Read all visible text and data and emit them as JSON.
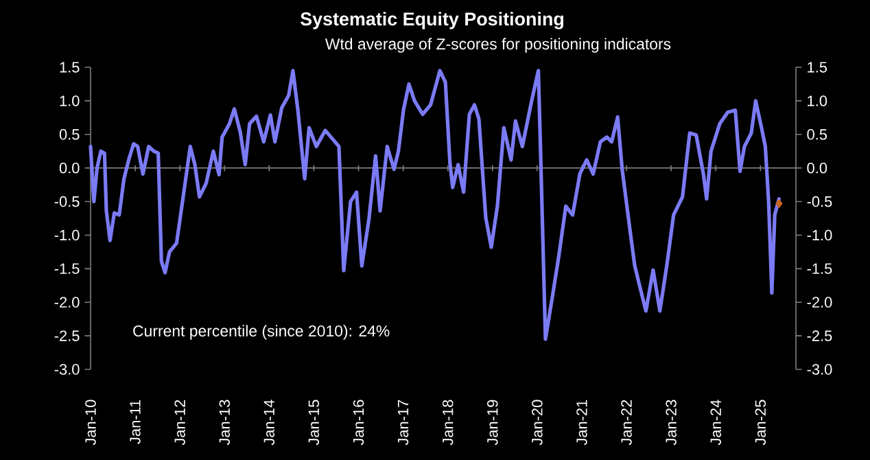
{
  "chart_data": {
    "type": "line",
    "title": "Systematic Equity Positioning",
    "subtitle": "Wtd average of Z-scores for positioning indicators",
    "annotations": [
      "Current percentile (since 2010): 24%"
    ],
    "xlim": [
      "2010-01-01",
      "2025-10-18"
    ],
    "xticks": [
      {
        "value": "2010-01-01",
        "label": "Jan-10"
      },
      {
        "value": "2011-01-01",
        "label": "Jan-11"
      },
      {
        "value": "2012-01-01",
        "label": "Jan-12"
      },
      {
        "value": "2013-01-01",
        "label": "Jan-13"
      },
      {
        "value": "2014-01-01",
        "label": "Jan-14"
      },
      {
        "value": "2015-01-01",
        "label": "Jan-15"
      },
      {
        "value": "2016-01-01",
        "label": "Jan-16"
      },
      {
        "value": "2017-01-01",
        "label": "Jan-17"
      },
      {
        "value": "2018-01-01",
        "label": "Jan-18"
      },
      {
        "value": "2019-01-01",
        "label": "Jan-19"
      },
      {
        "value": "2020-01-01",
        "label": "Jan-20"
      },
      {
        "value": "2021-01-01",
        "label": "Jan-21"
      },
      {
        "value": "2022-01-01",
        "label": "Jan-22"
      },
      {
        "value": "2023-01-01",
        "label": "Jan-23"
      },
      {
        "value": "2024-01-01",
        "label": "Jan-24"
      },
      {
        "value": "2025-01-01",
        "label": "Jan-25"
      }
    ],
    "ylim": [
      -3,
      1.5
    ],
    "yticks": [
      1.5,
      {
        "value": 1,
        "label": "1.0"
      },
      0.5,
      {
        "value": 0,
        "label": "0.0"
      },
      -0.5,
      {
        "value": -1,
        "label": "-1.0"
      },
      -1.5,
      {
        "value": -2,
        "label": "-2.0"
      },
      -2.5,
      {
        "value": -3,
        "label": "-3.0"
      }
    ],
    "y2lim": [
      -3,
      1.5
    ],
    "y2ticks": [
      1.5,
      {
        "value": 1,
        "label": "1.0"
      },
      0.5,
      {
        "value": 0,
        "label": "0.0"
      },
      -0.5,
      {
        "value": -1,
        "label": "-1.0"
      },
      -1.5,
      {
        "value": -2,
        "label": "-2.0"
      },
      -2.5,
      {
        "value": -3,
        "label": "-3.0"
      }
    ],
    "series": [
      {
        "color": "#7b7bf5",
        "x": [
          "2010-01-01",
          "2010-01-28",
          "2010-02-23",
          "2010-03-26",
          "2010-04-25",
          "2010-05-10",
          "2010-06-09",
          "2010-07-14",
          "2010-08-23",
          "2010-10-01",
          "2010-11-13",
          "2010-12-19",
          "2011-01-21",
          "2011-03-05",
          "2011-04-21",
          "2011-06-02",
          "2011-07-08",
          "2011-08-03",
          "2011-09-02",
          "2011-10-08",
          "2011-12-05",
          "2012-01-28",
          "2012-03-26",
          "2012-05-03",
          "2012-06-09",
          "2012-08-03",
          "2012-10-01",
          "2012-11-17",
          "2012-12-12",
          "2013-02-10",
          "2013-03-22",
          "2013-05-10",
          "2013-06-19",
          "2013-07-25",
          "2013-09-19",
          "2013-11-17",
          "2014-01-11",
          "2014-02-17",
          "2014-04-14",
          "2014-06-09",
          "2014-07-14",
          "2014-08-23",
          "2014-10-18",
          "2014-11-23",
          "2015-01-21",
          "2015-04-04",
          "2015-07-25",
          "2015-09-02",
          "2015-10-28",
          "2015-12-16",
          "2016-01-28",
          "2016-03-26",
          "2016-05-20",
          "2016-06-26",
          "2016-08-23",
          "2016-10-18",
          "2016-11-23",
          "2017-01-04",
          "2017-02-17",
          "2017-04-04",
          "2017-06-09",
          "2017-08-13",
          "2017-10-28",
          "2017-12-12",
          "2018-01-18",
          "2018-02-10",
          "2018-03-26",
          "2018-05-10",
          "2018-06-26",
          "2018-08-07",
          "2018-09-12",
          "2018-11-07",
          "2018-12-22",
          "2019-02-10",
          "2019-04-04",
          "2019-06-02",
          "2019-07-08",
          "2019-09-02",
          "2019-11-17",
          "2020-01-11",
          "2020-01-28",
          "2020-03-09",
          "2020-05-03",
          "2020-06-26",
          "2020-08-23",
          "2020-10-18",
          "2020-12-16",
          "2021-02-10",
          "2021-04-04",
          "2021-06-02",
          "2021-07-25",
          "2021-09-02",
          "2021-10-21",
          "2021-11-27",
          "2022-01-28",
          "2022-03-09",
          "2022-04-14",
          "2022-06-09",
          "2022-08-07",
          "2022-10-01",
          "2022-11-27",
          "2023-01-21",
          "2023-04-04",
          "2023-06-02",
          "2023-07-25",
          "2023-09-22",
          "2023-10-18",
          "2023-11-23",
          "2024-02-03",
          "2024-04-08",
          "2024-06-09",
          "2024-07-18",
          "2024-08-23",
          "2024-10-18",
          "2024-11-23",
          "2025-01-11",
          "2025-02-10",
          "2025-03-09",
          "2025-04-04",
          "2025-04-28",
          "2025-06-02"
        ],
        "values": [
          0.32,
          -0.5,
          0.0,
          0.25,
          0.22,
          -0.64,
          -1.08,
          -0.67,
          -0.7,
          -0.16,
          0.15,
          0.36,
          0.32,
          -0.09,
          0.32,
          0.25,
          0.22,
          -1.39,
          -1.56,
          -1.25,
          -1.12,
          -0.43,
          0.32,
          0.05,
          -0.43,
          -0.23,
          0.25,
          -0.1,
          0.46,
          0.66,
          0.88,
          0.53,
          0.05,
          0.66,
          0.77,
          0.39,
          0.79,
          0.39,
          0.9,
          1.08,
          1.45,
          0.87,
          -0.16,
          0.6,
          0.32,
          0.56,
          0.32,
          -1.53,
          -0.5,
          -0.36,
          -1.46,
          -0.77,
          0.18,
          -0.64,
          0.32,
          -0.02,
          0.25,
          0.87,
          1.25,
          1.0,
          0.8,
          0.94,
          1.45,
          1.28,
          0.08,
          -0.29,
          0.05,
          -0.36,
          0.8,
          0.94,
          0.73,
          -0.74,
          -1.18,
          -0.57,
          0.6,
          0.12,
          0.7,
          0.32,
          1.0,
          1.45,
          0.32,
          -2.55,
          -1.94,
          -1.32,
          -0.57,
          -0.7,
          -0.09,
          0.12,
          -0.09,
          0.39,
          0.46,
          0.39,
          0.76,
          -0.02,
          -0.9,
          -1.45,
          -1.72,
          -2.13,
          -1.52,
          -2.13,
          -1.45,
          -0.7,
          -0.43,
          0.52,
          0.49,
          -0.09,
          -0.46,
          0.25,
          0.66,
          0.83,
          0.86,
          -0.05,
          0.32,
          0.52,
          1.0,
          0.59,
          0.32,
          -0.5,
          -1.86,
          -0.7,
          -0.46
        ]
      },
      {
        "type": "scatter",
        "color": "#c8641e",
        "marker": "diamond",
        "x": [
          "2025-06-02"
        ],
        "values": [
          -0.53
        ]
      }
    ]
  }
}
